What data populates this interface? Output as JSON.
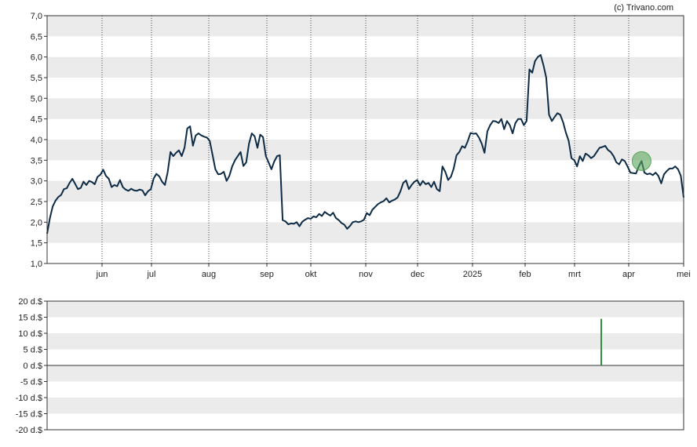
{
  "credit": "(c) Trivano.com",
  "chart_data": [
    {
      "type": "line",
      "title": "",
      "xlabel": "",
      "ylabel": "",
      "ylim": [
        1.0,
        7.0
      ],
      "y_ticks": [
        "1,0",
        "1,5",
        "2,0",
        "2,5",
        "3,0",
        "3,5",
        "4,0",
        "4,5",
        "5,0",
        "5,5",
        "6,0",
        "6,5",
        "7,0"
      ],
      "x_ticks": [
        "jun",
        "jul",
        "aug",
        "sep",
        "okt",
        "nov",
        "dec",
        "2025",
        "feb",
        "mrt",
        "apr",
        "mei"
      ],
      "grid": "alternating horizontal bands, dotted vertical month lines",
      "series": [
        {
          "color": "#0d2b45",
          "values": [
            1.72,
            2.1,
            2.38,
            2.52,
            2.61,
            2.66,
            2.8,
            2.82,
            2.95,
            3.05,
            2.93,
            2.8,
            2.83,
            2.98,
            2.9,
            3.0,
            2.97,
            2.92,
            3.1,
            3.15,
            3.27,
            3.12,
            3.05,
            2.85,
            2.9,
            2.87,
            3.02,
            2.85,
            2.79,
            2.76,
            2.81,
            2.77,
            2.76,
            2.79,
            2.77,
            2.65,
            2.75,
            2.8,
            3.06,
            3.17,
            3.11,
            2.98,
            2.9,
            3.21,
            3.7,
            3.6,
            3.68,
            3.74,
            3.6,
            3.8,
            4.27,
            4.32,
            3.85,
            4.1,
            4.15,
            4.1,
            4.07,
            4.05,
            3.97,
            3.63,
            3.28,
            3.16,
            3.17,
            3.22,
            3.0,
            3.12,
            3.35,
            3.5,
            3.6,
            3.7,
            3.36,
            3.45,
            3.9,
            4.15,
            4.08,
            3.8,
            4.12,
            4.06,
            3.6,
            3.45,
            3.28,
            3.47,
            3.6,
            3.62,
            2.05,
            2.02,
            1.95,
            1.97,
            1.96,
            2.0,
            1.9,
            2.01,
            2.06,
            2.1,
            2.08,
            2.14,
            2.12,
            2.2,
            2.15,
            2.25,
            2.2,
            2.16,
            2.23,
            2.1,
            2.05,
            1.98,
            1.94,
            1.84,
            1.91,
            2.0,
            2.02,
            2.0,
            2.02,
            2.06,
            2.22,
            2.17,
            2.3,
            2.37,
            2.44,
            2.48,
            2.51,
            2.58,
            2.48,
            2.52,
            2.55,
            2.6,
            2.75,
            2.95,
            3.01,
            2.8,
            2.9,
            2.98,
            3.02,
            2.89,
            3.0,
            2.92,
            2.95,
            2.85,
            2.98,
            2.8,
            2.75,
            3.35,
            3.22,
            3.02,
            3.1,
            3.3,
            3.62,
            3.7,
            3.84,
            3.8,
            3.96,
            4.16,
            4.14,
            4.15,
            4.05,
            3.9,
            3.68,
            4.2,
            4.35,
            4.45,
            4.44,
            4.4,
            4.5,
            4.25,
            4.45,
            4.35,
            4.15,
            4.4,
            4.5,
            4.5,
            4.35,
            4.45,
            5.7,
            5.62,
            5.9,
            6.0,
            6.05,
            5.8,
            5.5,
            4.6,
            4.45,
            4.55,
            4.64,
            4.6,
            4.42,
            4.17,
            3.97,
            3.55,
            3.5,
            3.35,
            3.6,
            3.48,
            3.66,
            3.62,
            3.55,
            3.6,
            3.7,
            3.8,
            3.82,
            3.85,
            3.75,
            3.7,
            3.6,
            3.45,
            3.4,
            3.52,
            3.48,
            3.35,
            3.2,
            3.19,
            3.18,
            3.35,
            3.48,
            3.2,
            3.16,
            3.18,
            3.14,
            3.2,
            3.12,
            2.94,
            3.16,
            3.24,
            3.3,
            3.3,
            3.35,
            3.28,
            3.12,
            2.6
          ]
        }
      ],
      "annotations": [
        {
          "type": "marker-circle",
          "label": "",
          "x_index": 212,
          "color": "#5aa65a"
        }
      ]
    },
    {
      "type": "bar",
      "title": "",
      "xlabel": "",
      "ylabel": "",
      "ylim": [
        -20,
        20
      ],
      "y_ticks": [
        "20 d.$",
        "15 d.$",
        "10 d.$",
        "5 d.$",
        "0 d.$",
        "-5 d.$",
        "-10 d.$",
        "-15 d.$",
        "-20 d.$"
      ],
      "series": [
        {
          "color": "#2e8b3a",
          "bars": [
            {
              "x_fraction": 0.8706,
              "value": 14.5
            }
          ]
        }
      ]
    }
  ]
}
